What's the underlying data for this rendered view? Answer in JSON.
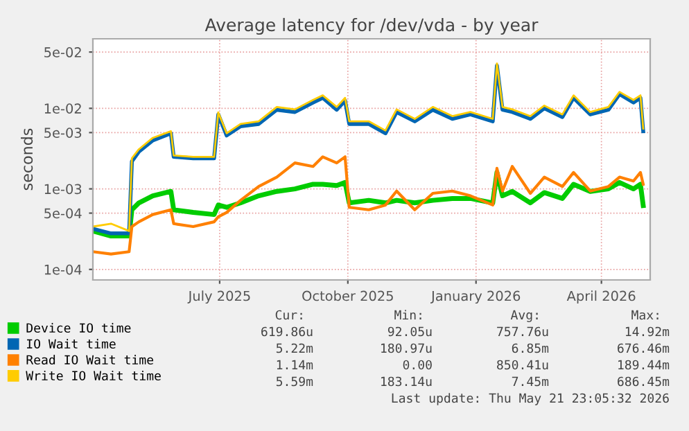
{
  "chart_data": {
    "type": "line",
    "title": "Average latency for /dev/vda - by year",
    "ylabel": "seconds",
    "log": "y",
    "grid": true,
    "legend": "bottom",
    "marker": "none",
    "line_style": "solid",
    "xlim": [
      "2025-04-16",
      "2026-05-21"
    ],
    "xticks": [
      {
        "value": "2025-07-16",
        "label": "July 2025"
      },
      {
        "value": "2025-10-16",
        "label": "October 2025"
      },
      {
        "value": "2026-01-16",
        "label": "January 2026"
      },
      {
        "value": "2026-04-16",
        "label": "April 2026"
      }
    ],
    "ylim": [
      7.4e-05,
      0.073
    ],
    "yticks": [
      {
        "value": 0.05,
        "label": "5e-02"
      },
      {
        "value": 0.01,
        "label": "1e-02"
      },
      {
        "value": 0.005,
        "label": "5e-03"
      },
      {
        "value": 0.001,
        "label": "1e-03"
      },
      {
        "value": 0.0005,
        "label": "5e-04"
      },
      {
        "value": 0.0001,
        "label": "1e-04"
      }
    ],
    "x": [
      "2025-04-16",
      "2025-04-29",
      "2025-05-12",
      "2025-05-14",
      "2025-05-19",
      "2025-05-29",
      "2025-06-11",
      "2025-06-13",
      "2025-06-27",
      "2025-07-12",
      "2025-07-15",
      "2025-07-21",
      "2025-07-31",
      "2025-08-13",
      "2025-08-26",
      "2025-09-08",
      "2025-09-21",
      "2025-09-28",
      "2025-10-08",
      "2025-10-14",
      "2025-10-17",
      "2025-10-31",
      "2025-11-12",
      "2025-11-20",
      "2025-12-03",
      "2025-12-16",
      "2025-12-30",
      "2026-01-12",
      "2026-01-28",
      "2026-01-31",
      "2026-02-04",
      "2026-02-11",
      "2026-02-24",
      "2026-03-06",
      "2026-03-19",
      "2026-03-27",
      "2026-04-08",
      "2026-04-21",
      "2026-04-29",
      "2026-05-09",
      "2026-05-14",
      "2026-05-16"
    ],
    "series": [
      {
        "name": "Device IO time",
        "color": "#00cc00",
        "values": [
          0.0003,
          0.00026,
          0.00026,
          0.00055,
          0.00067,
          0.00082,
          0.00093,
          0.00055,
          0.00051,
          0.00048,
          0.00063,
          0.00059,
          0.00067,
          0.00082,
          0.00093,
          0.001,
          0.00114,
          0.00114,
          0.0011,
          0.0012,
          0.00067,
          0.00072,
          0.00067,
          0.00072,
          0.00067,
          0.00072,
          0.00076,
          0.00076,
          0.00067,
          0.0016,
          0.00082,
          0.00093,
          0.00067,
          0.0009,
          0.00076,
          0.00114,
          0.00093,
          0.001,
          0.0012,
          0.001,
          0.00114,
          0.00062
        ]
      },
      {
        "name": "IO Wait time",
        "color": "#0066b3",
        "values": [
          0.00032,
          0.00028,
          0.00028,
          0.0022,
          0.0029,
          0.004,
          0.0049,
          0.0025,
          0.0024,
          0.0024,
          0.0084,
          0.0046,
          0.006,
          0.0064,
          0.0096,
          0.009,
          0.0118,
          0.0135,
          0.0096,
          0.0125,
          0.0064,
          0.0064,
          0.0049,
          0.009,
          0.0069,
          0.0096,
          0.0074,
          0.0084,
          0.0069,
          0.034,
          0.0096,
          0.009,
          0.0074,
          0.01,
          0.0078,
          0.0135,
          0.0084,
          0.0096,
          0.015,
          0.0118,
          0.0135,
          0.0052
        ]
      },
      {
        "name": "Read IO Wait time",
        "color": "#ff8000",
        "values": [
          0.000166,
          0.000155,
          0.000166,
          0.00034,
          0.00039,
          0.00048,
          0.00055,
          0.00037,
          0.00034,
          0.00039,
          0.00045,
          0.00051,
          0.00072,
          0.00107,
          0.0014,
          0.0021,
          0.0019,
          0.0025,
          0.0021,
          0.0025,
          0.00059,
          0.00055,
          0.00063,
          0.00094,
          0.00055,
          0.00088,
          0.00094,
          0.00082,
          0.00063,
          0.0018,
          0.00094,
          0.0019,
          0.00088,
          0.0014,
          0.00107,
          0.0016,
          0.00094,
          0.00107,
          0.0014,
          0.00125,
          0.0016,
          0.00114
        ]
      },
      {
        "name": "Write IO Wait time",
        "color": "#ffcc00",
        "values": [
          0.00034,
          0.00037,
          0.0003,
          0.0024,
          0.0031,
          0.0043,
          0.0052,
          0.0026,
          0.0025,
          0.0025,
          0.0089,
          0.0049,
          0.0064,
          0.0069,
          0.0104,
          0.0097,
          0.0127,
          0.0145,
          0.0104,
          0.0135,
          0.0069,
          0.0069,
          0.0053,
          0.0097,
          0.0074,
          0.0104,
          0.008,
          0.009,
          0.0074,
          0.036,
          0.0104,
          0.0097,
          0.008,
          0.0108,
          0.0084,
          0.0145,
          0.009,
          0.0104,
          0.016,
          0.0127,
          0.0145,
          0.0056
        ]
      }
    ],
    "annotations": [
      "Cur:",
      "Min:",
      "Avg:",
      "Max:",
      "619.86u",
      "92.05u",
      "757.76u",
      "14.92m",
      "5.22m",
      "180.97u",
      "6.85m",
      "676.46m",
      "1.14m",
      "0.00",
      "850.41u",
      "189.44m",
      "5.59m",
      "183.14u",
      "7.45m",
      "686.45m",
      "Last update: Thu May 21 23:05:32 2026"
    ]
  }
}
